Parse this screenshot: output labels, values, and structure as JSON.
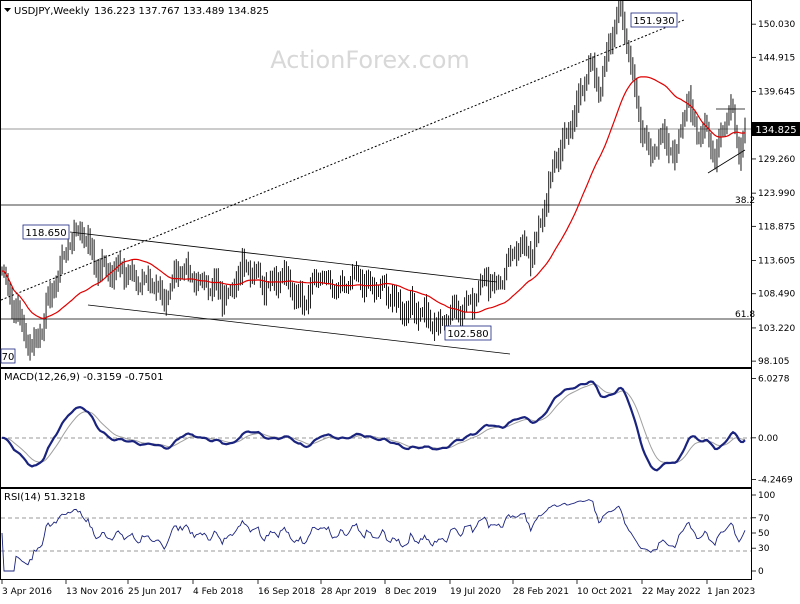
{
  "header": {
    "symbol": "USDJPY,Weekly",
    "ohlc": "136.223 137.767 133.489 134.825"
  },
  "watermark": "ActionForex.com",
  "indicator_labels": {
    "macd": "MACD(12,26,9) -0.3159 -0.7501",
    "rsi": "RSI(14) 51.3218"
  },
  "annotations": {
    "peak": "151.930",
    "top_left": "118.650",
    "low": "102.580",
    "current_price": "134.825",
    "fib_382": "38.2",
    "fib_618": "61.8",
    "left_cut": "70"
  },
  "colors": {
    "price": "#000000",
    "ma": "#e00000",
    "macd_line": "#1a237e",
    "signal_line": "#a0a0a0",
    "trendline": "#000000",
    "price_box_bg": "#000000",
    "price_box_text": "#ffffff",
    "label_box_bg": "#ffffff",
    "label_box_border": "#1a237e"
  },
  "chart_data": [
    {
      "type": "line",
      "name": "price",
      "x_ticks": [
        "3 Apr 2016",
        "13 Nov 2016",
        "25 Jun 2017",
        "4 Feb 2018",
        "16 Sep 2018",
        "28 Apr 2019",
        "8 Dec 2019",
        "19 Jul 2020",
        "28 Feb 2021",
        "10 Oct 2021",
        "22 May 2022",
        "1 Jan 2023"
      ],
      "y_ticks": [
        "150.030",
        "144.915",
        "139.645",
        "134.825",
        "129.260",
        "123.990",
        "118.875",
        "113.605",
        "108.490",
        "103.220",
        "98.105"
      ],
      "ylim": [
        97.2,
        153.6
      ],
      "series": [
        {
          "x": [
            0,
            1,
            2,
            3,
            4,
            5,
            6,
            7,
            8,
            9,
            10,
            11,
            12,
            13,
            14,
            15,
            16,
            17,
            18,
            19,
            20,
            21,
            22,
            23,
            24,
            25,
            26,
            27,
            28,
            29,
            30,
            31,
            32,
            33,
            34,
            35,
            36,
            37,
            38,
            39,
            40,
            41,
            42,
            43,
            44,
            45,
            46,
            47,
            48,
            49,
            50,
            51,
            52,
            53,
            54,
            55,
            56,
            57,
            58,
            59,
            60,
            61,
            62,
            63,
            64,
            65,
            66,
            67,
            68,
            69,
            70,
            71,
            72,
            73,
            74,
            75,
            76,
            77,
            78,
            79,
            80,
            81,
            82,
            83,
            84,
            85,
            86,
            87,
            88,
            89,
            90,
            91,
            92,
            93,
            94,
            95,
            96,
            97,
            98,
            99,
            100,
            101,
            102,
            103,
            104,
            105,
            106,
            107,
            108,
            109,
            110,
            111,
            112,
            113,
            114,
            115,
            116,
            117,
            118,
            119,
            120,
            121,
            122,
            123,
            124,
            125,
            126,
            127,
            128,
            129,
            130,
            131,
            132,
            133,
            134,
            135,
            136,
            137,
            138,
            139,
            140,
            141,
            142,
            143,
            144,
            145,
            146,
            147,
            148,
            149,
            150,
            151,
            152,
            153,
            154,
            155,
            156,
            157,
            158,
            159,
            160,
            161,
            162,
            163,
            164,
            165,
            166,
            167,
            168,
            169,
            170,
            171,
            172,
            173,
            174,
            175,
            176,
            177,
            178,
            179,
            180,
            181,
            182,
            183,
            184,
            185,
            186,
            187,
            188,
            189,
            190,
            191,
            192,
            193,
            194,
            195,
            196,
            197,
            198,
            199,
            200,
            201,
            202,
            203,
            204,
            205,
            206,
            207,
            208,
            209,
            210,
            211,
            212,
            213,
            214,
            215,
            216,
            217,
            218,
            219,
            220,
            221,
            222,
            223,
            224,
            225,
            226,
            227,
            228,
            229,
            230,
            231,
            232,
            233,
            234,
            235,
            236,
            237,
            238,
            239,
            240,
            241,
            242,
            243,
            244,
            245,
            246,
            247,
            248,
            249,
            250,
            251,
            252,
            253,
            254,
            255,
            256,
            257,
            258,
            259,
            260,
            261,
            262,
            263,
            264,
            265,
            266,
            267,
            268,
            269,
            270,
            271,
            272,
            273,
            274,
            275,
            276,
            277,
            278,
            279,
            280,
            281,
            282,
            283,
            284,
            285,
            286,
            287,
            288,
            289,
            290,
            291,
            292,
            293,
            294,
            295,
            296,
            297,
            298,
            299,
            300,
            301,
            302,
            303,
            304,
            305,
            306,
            307,
            308,
            309,
            310,
            311,
            312,
            313,
            314,
            315,
            316,
            317,
            318,
            319,
            320,
            321,
            322,
            323,
            324,
            325,
            326,
            327,
            328,
            329,
            330,
            331,
            332,
            333,
            334,
            335,
            336,
            337,
            338,
            339,
            340,
            341,
            342,
            343,
            344,
            345,
            346,
            347,
            348,
            349,
            350,
            351,
            352,
            353,
            354,
            355,
            356,
            357,
            358,
            359,
            360,
            361,
            362,
            363,
            364,
            365,
            366,
            367,
            368,
            369,
            370,
            371
          ],
          "close_anchor_x": [
            0,
            5,
            10,
            15,
            20,
            25,
            32,
            40,
            48,
            55,
            62,
            70,
            80,
            90,
            100,
            110,
            120,
            130,
            140,
            150,
            160,
            170,
            180,
            190,
            200,
            210,
            220,
            230,
            236,
            241,
            246,
            252,
            258,
            264,
            270,
            276,
            282,
            288,
            293,
            298,
            303,
            308,
            313,
            318,
            324,
            330,
            336,
            342,
            348,
            352,
            356,
            360,
            364,
            368,
            371
          ],
          "close_anchor_y": [
            112.0,
            106.5,
            104.0,
            100.5,
            103.0,
            109.0,
            116.0,
            118.0,
            113.0,
            111.5,
            112.5,
            110.0,
            108.5,
            112.0,
            110.5,
            108.0,
            112.5,
            111.0,
            110.5,
            108.0,
            111.0,
            109.0,
            111.0,
            108.5,
            107.0,
            105.0,
            104.0,
            106.5,
            108.5,
            110.5,
            109.5,
            113.0,
            115.5,
            114.5,
            121.0,
            128.0,
            133.5,
            138.5,
            143.0,
            140.0,
            147.5,
            151.9,
            146.0,
            136.5,
            129.5,
            133.0,
            130.0,
            137.5,
            133.0,
            134.5,
            129.5,
            134.0,
            136.8,
            131.5,
            134.825
          ]
        }
      ]
    },
    {
      "type": "line",
      "name": "MACD(12,26,9)",
      "y_ticks": [
        "6.0278",
        "0.00",
        "-4.2469"
      ],
      "ylim": [
        -5.0,
        7.0
      ]
    },
    {
      "type": "line",
      "name": "RSI(14)",
      "y_ticks": [
        "100",
        "70",
        "50",
        "30",
        "0"
      ],
      "ylim": [
        0,
        100
      ]
    }
  ]
}
